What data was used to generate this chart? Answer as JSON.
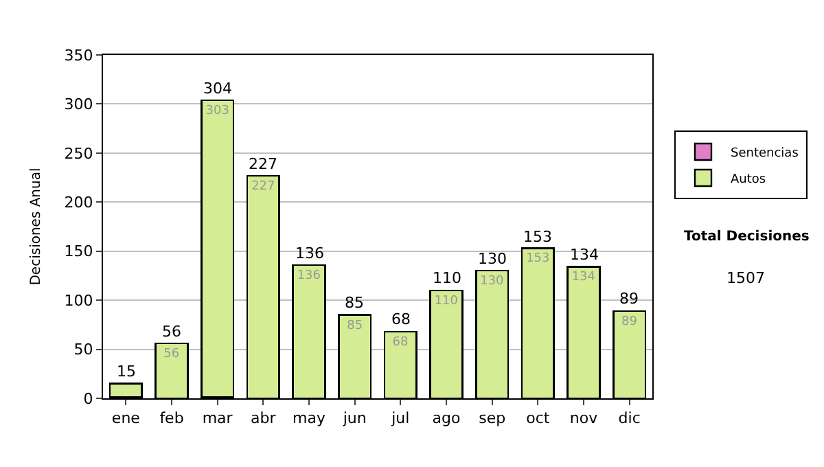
{
  "chart_data": {
    "type": "bar",
    "stacked": true,
    "ylabel": "Decisiones Anual",
    "categories": [
      "ene",
      "feb",
      "mar",
      "abr",
      "may",
      "jun",
      "jul",
      "ago",
      "sep",
      "oct",
      "nov",
      "dic"
    ],
    "series": [
      {
        "name": "Sentencias",
        "color": "#e080c8",
        "values": [
          1,
          0,
          1,
          0,
          0,
          0,
          0,
          0,
          0,
          0,
          0,
          0
        ]
      },
      {
        "name": "Autos",
        "color": "#d4ec94",
        "values": [
          14,
          56,
          303,
          227,
          136,
          85,
          68,
          110,
          130,
          153,
          134,
          89
        ],
        "value_labels": [
          null,
          "56",
          "303",
          "227",
          "136",
          "85",
          "68",
          "110",
          "130",
          "153",
          "134",
          "89"
        ]
      }
    ],
    "totals": [
      "15",
      "56",
      "304",
      "227",
      "136",
      "85",
      "68",
      "110",
      "130",
      "153",
      "134",
      "89"
    ],
    "ylim": [
      0,
      350
    ],
    "yticks": [
      0,
      50,
      100,
      150,
      200,
      250,
      300,
      350
    ],
    "grid": "y",
    "legend": "right",
    "annotations": [
      "Total Decisiones",
      "1507"
    ]
  }
}
